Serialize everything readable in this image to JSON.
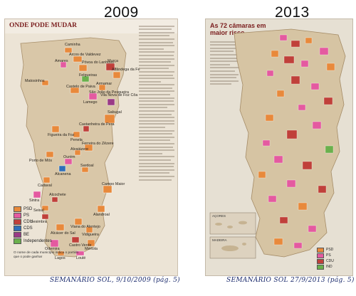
{
  "left_page": {
    "year": "2009",
    "header": "ONDE PODE MUDAR",
    "places": [
      "Caminha",
      "Arcos de Valdevez",
      "Amares",
      "Póvoa do Lanhoso",
      "Murça",
      "Alfândega da Fé",
      "Felgueiras",
      "Matosinhos",
      "Armamar",
      "Castelo de Paiva",
      "Lamego",
      "Sabugal",
      "Figueira da Foz",
      "Penela",
      "Ferreira do Zêzere",
      "Porto de Mós",
      "Ourém",
      "Alcanena",
      "Cadaval",
      "Sintra",
      "Alcochete",
      "Seixal",
      "Sesimbra",
      "Viana do Alentejo",
      "Alcácer do Sal",
      "Castro Verde",
      "Odemira",
      "Lagos",
      "Loulé",
      "São João da Pesqueira",
      "Vila Nova de Foz Côa",
      "Castanheira de Pera",
      "Alvaiázere",
      "Sardoal",
      "Campo Maior",
      "Alandroal",
      "Vidigueira",
      "Mértola"
    ],
    "legend": [
      {
        "label": "PSD",
        "color": "#e8893b"
      },
      {
        "label": "PS",
        "color": "#e45aa0"
      },
      {
        "label": "CDU",
        "color": "#c0403a"
      },
      {
        "label": "CDS",
        "color": "#2f6fb8"
      },
      {
        "label": "BE",
        "color": "#9a3a86"
      },
      {
        "label": "Independentes",
        "color": "#6ab04c"
      }
    ],
    "legend_note": "O nome de cada município indica o partido que o pode ganhar",
    "source_caption": "SEMANÁRIO SOL, 9/10/2009 (pág. 5)"
  },
  "right_page": {
    "year": "2013",
    "header": "As 72 câmaras em maior risco",
    "inset_labels": [
      "AÇORES",
      "MADEIRA"
    ],
    "legend": [
      {
        "label": "PSD",
        "color": "#e8893b"
      },
      {
        "label": "PS",
        "color": "#e45aa0"
      },
      {
        "label": "CDU",
        "color": "#c0403a"
      },
      {
        "label": "IND",
        "color": "#6ab04c"
      }
    ],
    "source_caption": "SEMANÁRIO SOL 27/9/2013 (pág. 5)"
  },
  "colors": {
    "page_bg": "#ffffff",
    "caption_ink": "#1a2a6c",
    "map_base": "#d9c7a8"
  }
}
